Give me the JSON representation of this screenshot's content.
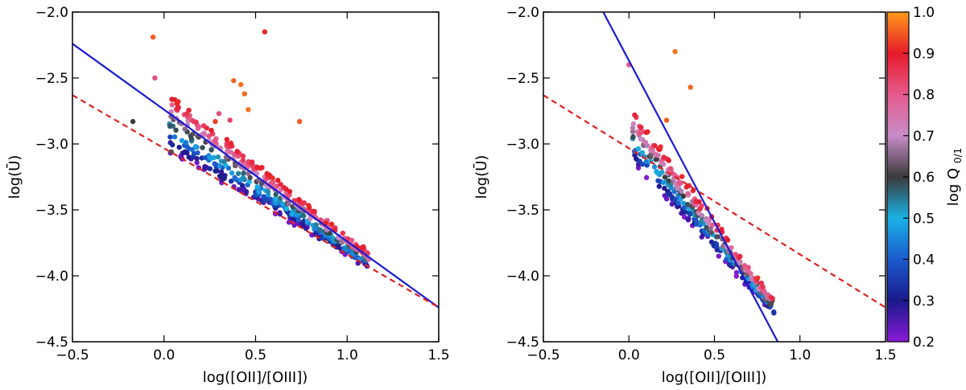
{
  "chart_data": [
    {
      "type": "scatter",
      "panel": "left",
      "title": "",
      "xlabel": "log([OII]/[OIII])",
      "ylabel": "log(Ū)",
      "xlim": [
        -0.5,
        1.5
      ],
      "ylim": [
        -4.5,
        -2.0
      ],
      "xticks": [
        -0.5,
        0.0,
        0.5,
        1.0,
        1.5
      ],
      "xtick_labels": [
        "−0.5",
        "0.0",
        "0.5",
        "1.0",
        "1.5"
      ],
      "yticks": [
        -4.5,
        -4.0,
        -3.5,
        -3.0,
        -2.5,
        -2.0
      ],
      "ytick_labels": [
        "−4.5",
        "−4.0",
        "−3.5",
        "−3.0",
        "−2.5",
        "−2.0"
      ],
      "lines": [
        {
          "name": "solid-fit",
          "style": "solid",
          "color": "#1a1ad6",
          "x": [
            -0.5,
            1.5
          ],
          "y": [
            -2.24,
            -4.24
          ]
        },
        {
          "name": "dashed-fit",
          "style": "dashed",
          "color": "#e02020",
          "x": [
            -0.5,
            1.5
          ],
          "y": [
            -2.63,
            -4.24
          ]
        }
      ],
      "outliers": [
        {
          "x": -0.06,
          "y": -2.19,
          "q": 0.95
        },
        {
          "x": -0.05,
          "y": -2.5,
          "q": 0.82
        },
        {
          "x": 0.55,
          "y": -2.15,
          "q": 0.91
        },
        {
          "x": 0.38,
          "y": -2.52,
          "q": 0.96
        },
        {
          "x": 0.42,
          "y": -2.55,
          "q": 0.97
        },
        {
          "x": 0.44,
          "y": -2.62,
          "q": 0.96
        },
        {
          "x": 0.46,
          "y": -2.74,
          "q": 0.97
        },
        {
          "x": 0.74,
          "y": -2.83,
          "q": 0.95
        },
        {
          "x": 0.28,
          "y": -2.83,
          "q": 0.93
        },
        {
          "x": -0.17,
          "y": -2.83,
          "q": 0.6
        },
        {
          "x": 0.04,
          "y": -3.06,
          "q": 0.62
        },
        {
          "x": 0.3,
          "y": -2.77,
          "q": 0.82
        },
        {
          "x": 0.36,
          "y": -2.82,
          "q": 0.84
        }
      ],
      "cloud": {
        "x_range": [
          0.03,
          1.12
        ],
        "fit_intercept": -2.835,
        "fit_slope": -0.94,
        "count": 520
      }
    },
    {
      "type": "scatter",
      "panel": "right",
      "title": "",
      "xlabel": "log([OII]/[OIII])",
      "ylabel": "log(Ū)",
      "xlim": [
        -0.5,
        1.5
      ],
      "ylim": [
        -4.5,
        -2.0
      ],
      "xticks": [
        -0.5,
        0.0,
        0.5,
        1.0,
        1.5
      ],
      "xtick_labels": [
        "−0.5",
        "0.0",
        "0.5",
        "1.0",
        "1.5"
      ],
      "yticks": [
        -4.5,
        -4.0,
        -3.5,
        -3.0,
        -2.5,
        -2.0
      ],
      "ytick_labels": [
        "−4.5",
        "−4.0",
        "−3.5",
        "−3.0",
        "−2.5",
        "−2.0"
      ],
      "lines": [
        {
          "name": "solid-fit",
          "style": "solid",
          "color": "#1a1ad6",
          "x": [
            -0.15,
            0.87
          ],
          "y": [
            -2.0,
            -4.5
          ]
        },
        {
          "name": "dashed-fit",
          "style": "dashed",
          "color": "#e02020",
          "x": [
            -0.5,
            1.5
          ],
          "y": [
            -2.63,
            -4.24
          ]
        }
      ],
      "outliers": [
        {
          "x": 0.27,
          "y": -2.3,
          "q": 0.97
        },
        {
          "x": 0.36,
          "y": -2.57,
          "q": 0.96
        },
        {
          "x": 0.22,
          "y": -2.82,
          "q": 0.95
        },
        {
          "x": 0.0,
          "y": -2.4,
          "q": 0.8
        }
      ],
      "cloud": {
        "x_range": [
          0.02,
          0.85
        ],
        "fit_intercept": -2.93,
        "fit_slope": -1.55,
        "count": 360
      }
    }
  ],
  "colorbar": {
    "label": "log Q0/1",
    "label_main": "log Q",
    "label_sub": "0/1",
    "min": 0.2,
    "max": 1.0,
    "ticks": [
      0.2,
      0.3,
      0.4,
      0.5,
      0.6,
      0.7,
      0.8,
      0.9,
      1.0
    ],
    "tick_labels": [
      "0.2",
      "0.3",
      "0.4",
      "0.5",
      "0.6",
      "0.7",
      "0.8",
      "0.9",
      "1.0"
    ],
    "stops": [
      {
        "v": 0.2,
        "color": "#8a1ad6"
      },
      {
        "v": 0.3,
        "color": "#1a1a8c"
      },
      {
        "v": 0.4,
        "color": "#1a5acc"
      },
      {
        "v": 0.5,
        "color": "#1ab2e6"
      },
      {
        "v": 0.6,
        "color": "#3a3a3a"
      },
      {
        "v": 0.7,
        "color": "#c88cc8"
      },
      {
        "v": 0.8,
        "color": "#e65a8c"
      },
      {
        "v": 0.9,
        "color": "#e61a2a"
      },
      {
        "v": 1.0,
        "color": "#ff9a1a"
      }
    ]
  }
}
